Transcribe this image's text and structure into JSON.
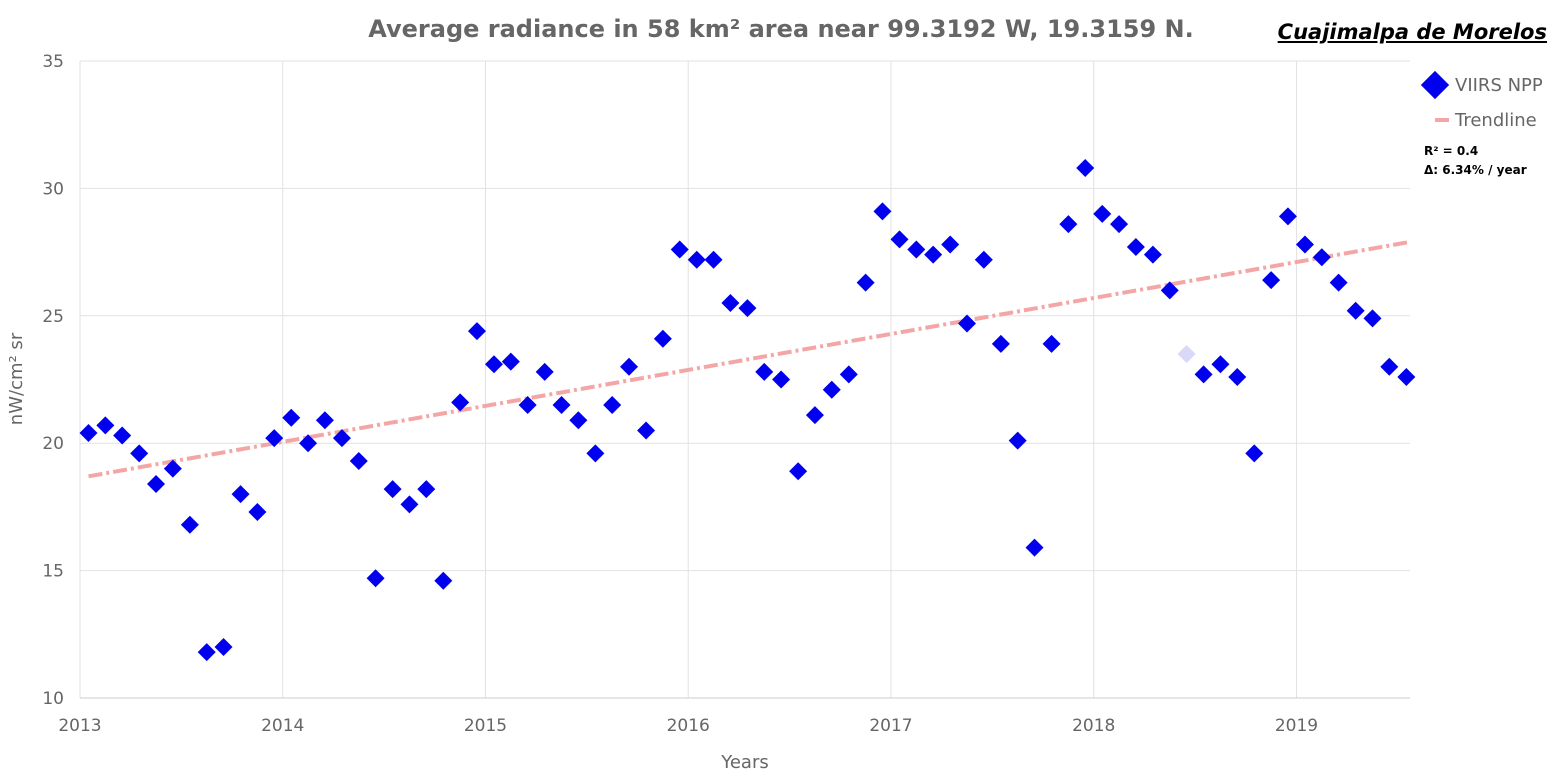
{
  "chart_data": {
    "type": "scatter",
    "title": "Average radiance in 58 km² area near 99.3192 W, 19.3159 N.",
    "place_label": "Cuajimalpa de Morelos",
    "xlabel": "Years",
    "ylabel": "nW/cm² sr",
    "xlim": [
      2013.0,
      2019.56
    ],
    "ylim": [
      10,
      35
    ],
    "x_ticks": [
      2013,
      2014,
      2015,
      2016,
      2017,
      2018,
      2019
    ],
    "x_tick_labels": [
      "2013",
      "2014",
      "2015",
      "2016",
      "2017",
      "2018",
      "2019"
    ],
    "y_ticks": [
      10,
      15,
      20,
      25,
      30,
      35
    ],
    "y_tick_labels": [
      "10",
      "15",
      "20",
      "25",
      "30",
      "35"
    ],
    "grid": true,
    "legend_position": "top-right",
    "colors": {
      "points": "#0000ee",
      "faded_point": "#d8d8f8",
      "trendline": "#f4a6a6",
      "grid": "#e2e2e2",
      "axis": "#cccccc"
    },
    "series": [
      {
        "name": "VIIRS NPP",
        "marker": "diamond",
        "points": [
          {
            "x": 2013.042,
            "y": 20.4
          },
          {
            "x": 2013.125,
            "y": 20.7
          },
          {
            "x": 2013.208,
            "y": 20.3
          },
          {
            "x": 2013.292,
            "y": 19.6
          },
          {
            "x": 2013.375,
            "y": 18.4
          },
          {
            "x": 2013.458,
            "y": 19.0
          },
          {
            "x": 2013.542,
            "y": 16.8
          },
          {
            "x": 2013.625,
            "y": 11.8
          },
          {
            "x": 2013.708,
            "y": 12.0
          },
          {
            "x": 2013.792,
            "y": 18.0
          },
          {
            "x": 2013.875,
            "y": 17.3
          },
          {
            "x": 2013.958,
            "y": 20.2
          },
          {
            "x": 2014.042,
            "y": 21.0
          },
          {
            "x": 2014.125,
            "y": 20.0
          },
          {
            "x": 2014.208,
            "y": 20.9
          },
          {
            "x": 2014.292,
            "y": 20.2
          },
          {
            "x": 2014.375,
            "y": 19.3
          },
          {
            "x": 2014.458,
            "y": 14.7
          },
          {
            "x": 2014.542,
            "y": 18.2
          },
          {
            "x": 2014.625,
            "y": 17.6
          },
          {
            "x": 2014.708,
            "y": 18.2
          },
          {
            "x": 2014.792,
            "y": 14.6
          },
          {
            "x": 2014.875,
            "y": 21.6
          },
          {
            "x": 2014.958,
            "y": 24.4
          },
          {
            "x": 2015.042,
            "y": 23.1
          },
          {
            "x": 2015.125,
            "y": 23.2
          },
          {
            "x": 2015.208,
            "y": 21.5
          },
          {
            "x": 2015.292,
            "y": 22.8
          },
          {
            "x": 2015.375,
            "y": 21.5
          },
          {
            "x": 2015.458,
            "y": 20.9
          },
          {
            "x": 2015.542,
            "y": 19.6
          },
          {
            "x": 2015.625,
            "y": 21.5
          },
          {
            "x": 2015.708,
            "y": 23.0
          },
          {
            "x": 2015.792,
            "y": 20.5
          },
          {
            "x": 2015.875,
            "y": 24.1
          },
          {
            "x": 2015.958,
            "y": 27.6
          },
          {
            "x": 2016.042,
            "y": 27.2
          },
          {
            "x": 2016.125,
            "y": 27.2
          },
          {
            "x": 2016.208,
            "y": 25.5
          },
          {
            "x": 2016.292,
            "y": 25.3
          },
          {
            "x": 2016.375,
            "y": 22.8
          },
          {
            "x": 2016.458,
            "y": 22.5
          },
          {
            "x": 2016.542,
            "y": 18.9
          },
          {
            "x": 2016.625,
            "y": 21.1
          },
          {
            "x": 2016.708,
            "y": 22.1
          },
          {
            "x": 2016.792,
            "y": 22.7
          },
          {
            "x": 2016.875,
            "y": 26.3
          },
          {
            "x": 2016.958,
            "y": 29.1
          },
          {
            "x": 2017.042,
            "y": 28.0
          },
          {
            "x": 2017.125,
            "y": 27.6
          },
          {
            "x": 2017.208,
            "y": 27.4
          },
          {
            "x": 2017.292,
            "y": 27.8
          },
          {
            "x": 2017.375,
            "y": 24.7
          },
          {
            "x": 2017.458,
            "y": 27.2
          },
          {
            "x": 2017.542,
            "y": 23.9
          },
          {
            "x": 2017.625,
            "y": 20.1
          },
          {
            "x": 2017.708,
            "y": 15.9
          },
          {
            "x": 2017.792,
            "y": 23.9
          },
          {
            "x": 2017.875,
            "y": 28.6
          },
          {
            "x": 2017.958,
            "y": 30.8
          },
          {
            "x": 2018.042,
            "y": 29.0
          },
          {
            "x": 2018.125,
            "y": 28.6
          },
          {
            "x": 2018.208,
            "y": 27.7
          },
          {
            "x": 2018.292,
            "y": 27.4
          },
          {
            "x": 2018.375,
            "y": 26.0
          },
          {
            "x": 2018.458,
            "y": 23.5,
            "faded": true
          },
          {
            "x": 2018.542,
            "y": 22.7
          },
          {
            "x": 2018.625,
            "y": 23.1
          },
          {
            "x": 2018.708,
            "y": 22.6
          },
          {
            "x": 2018.792,
            "y": 19.6
          },
          {
            "x": 2018.875,
            "y": 26.4
          },
          {
            "x": 2018.958,
            "y": 28.9
          },
          {
            "x": 2019.042,
            "y": 27.8
          },
          {
            "x": 2019.125,
            "y": 27.3
          },
          {
            "x": 2019.208,
            "y": 26.3
          },
          {
            "x": 2019.292,
            "y": 25.2
          },
          {
            "x": 2019.375,
            "y": 24.9
          },
          {
            "x": 2019.458,
            "y": 23.0
          },
          {
            "x": 2019.542,
            "y": 22.6
          }
        ]
      },
      {
        "name": "Trendline",
        "type": "line",
        "style": "dash-dot",
        "points": [
          {
            "x": 2013.042,
            "y": 18.7
          },
          {
            "x": 2019.56,
            "y": 27.9
          }
        ]
      }
    ],
    "annotations": [
      "R² = 0.4",
      "Δ: 6.34% / year"
    ]
  }
}
